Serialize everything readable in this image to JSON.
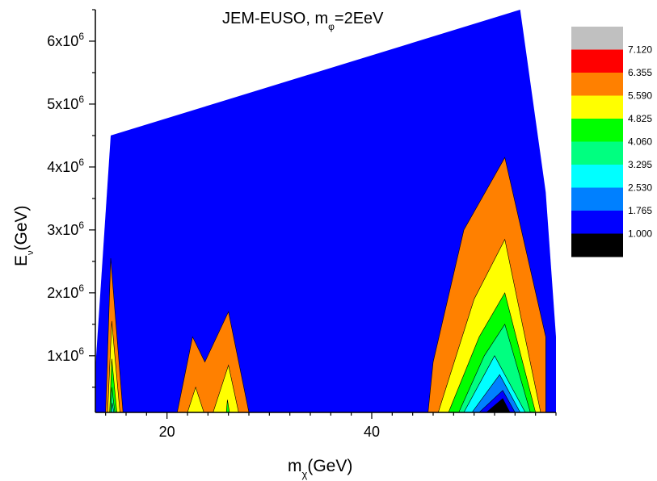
{
  "chart_data": {
    "type": "heatmap",
    "subtype": "filled-contour",
    "title": {
      "main": "JEM-EUSO, m",
      "sub": "φ",
      "suffix": "=2EeV"
    },
    "xlabel": {
      "main": "m",
      "sub": "χ",
      "suffix": "(GeV)"
    },
    "ylabel": {
      "main": "E",
      "sub": "ν",
      "suffix": "(GeV)"
    },
    "xlim": [
      13,
      58
    ],
    "ylim": [
      100000,
      6500000
    ],
    "x_ticks": [
      {
        "value": 20,
        "label": "20"
      },
      {
        "value": 40,
        "label": "40"
      }
    ],
    "y_ticks": [
      {
        "value": 1000000,
        "base": "1x10",
        "exp": "6"
      },
      {
        "value": 2000000,
        "base": "2x10",
        "exp": "6"
      },
      {
        "value": 3000000,
        "base": "3x10",
        "exp": "6"
      },
      {
        "value": 4000000,
        "base": "4x10",
        "exp": "6"
      },
      {
        "value": 5000000,
        "base": "5x10",
        "exp": "6"
      },
      {
        "value": 6000000,
        "base": "6x10",
        "exp": "6"
      }
    ],
    "legend": {
      "placement": "right",
      "levels": [
        "7.120",
        "6.355",
        "5.590",
        "4.825",
        "4.060",
        "3.295",
        "2.530",
        "1.765",
        "1.000"
      ],
      "colors": [
        "#c0c0c0",
        "#ff0000",
        "#ff8000",
        "#ffff00",
        "#00ff00",
        "#00ff80",
        "#00ffff",
        "#0080ff",
        "#0000ff",
        "#000000"
      ]
    },
    "boundary": [
      [
        14.5,
        4500000
      ],
      [
        54.5,
        6500000
      ],
      [
        57,
        3600000
      ],
      [
        58,
        1300000
      ],
      [
        58,
        100000
      ],
      [
        13,
        100000
      ],
      [
        13,
        800000
      ]
    ],
    "regions": [
      {
        "level": 2,
        "points": [
          [
            14.0,
            100000
          ],
          [
            14.5,
            2550000
          ],
          [
            15.7,
            100000
          ]
        ]
      },
      {
        "level": 3,
        "points": [
          [
            14.2,
            100000
          ],
          [
            14.6,
            1550000
          ],
          [
            15.4,
            100000
          ]
        ]
      },
      {
        "level": 4,
        "points": [
          [
            14.4,
            100000
          ],
          [
            14.6,
            950000
          ],
          [
            15.1,
            100000
          ]
        ]
      },
      {
        "level": 5,
        "points": [
          [
            14.5,
            100000
          ],
          [
            14.6,
            500000
          ],
          [
            14.9,
            100000
          ]
        ]
      },
      {
        "level": 6,
        "points": [
          [
            14.6,
            100000
          ],
          [
            14.65,
            250000
          ],
          [
            14.8,
            100000
          ]
        ]
      },
      {
        "level": 2,
        "points": [
          [
            21,
            100000
          ],
          [
            22.5,
            1300000
          ],
          [
            23.7,
            900000
          ],
          [
            26,
            1700000
          ],
          [
            28,
            100000
          ]
        ]
      },
      {
        "level": 3,
        "points": [
          [
            22,
            100000
          ],
          [
            22.8,
            500000
          ],
          [
            23.6,
            100000
          ]
        ]
      },
      {
        "level": 3,
        "points": [
          [
            24.5,
            100000
          ],
          [
            26,
            850000
          ],
          [
            27,
            100000
          ]
        ]
      },
      {
        "level": 4,
        "points": [
          [
            25.8,
            100000
          ],
          [
            25.9,
            300000
          ],
          [
            26.1,
            100000
          ]
        ]
      },
      {
        "level": 2,
        "points": [
          [
            45.5,
            100000
          ],
          [
            46,
            900000
          ],
          [
            49,
            3000000
          ],
          [
            53,
            4150000
          ],
          [
            57,
            1300000
          ],
          [
            57,
            100000
          ]
        ]
      },
      {
        "level": 3,
        "points": [
          [
            46.5,
            100000
          ],
          [
            50,
            1900000
          ],
          [
            53,
            2850000
          ],
          [
            56.5,
            100000
          ]
        ]
      },
      {
        "level": 4,
        "points": [
          [
            47.5,
            100000
          ],
          [
            50.5,
            1300000
          ],
          [
            53,
            2000000
          ],
          [
            56,
            100000
          ]
        ]
      },
      {
        "level": 5,
        "points": [
          [
            48.5,
            100000
          ],
          [
            51,
            1000000
          ],
          [
            53,
            1500000
          ],
          [
            55.5,
            100000
          ]
        ]
      },
      {
        "level": 6,
        "points": [
          [
            49,
            100000
          ],
          [
            52,
            1000000
          ],
          [
            55,
            100000
          ]
        ]
      },
      {
        "level": 7,
        "points": [
          [
            49.8,
            100000
          ],
          [
            52.5,
            700000
          ],
          [
            54.5,
            100000
          ]
        ]
      },
      {
        "level": 8,
        "points": [
          [
            50.5,
            100000
          ],
          [
            52.8,
            450000
          ],
          [
            54,
            100000
          ]
        ]
      },
      {
        "level": 9,
        "points": [
          [
            51.2,
            100000
          ],
          [
            52.8,
            320000
          ],
          [
            53.5,
            100000
          ]
        ]
      }
    ]
  }
}
